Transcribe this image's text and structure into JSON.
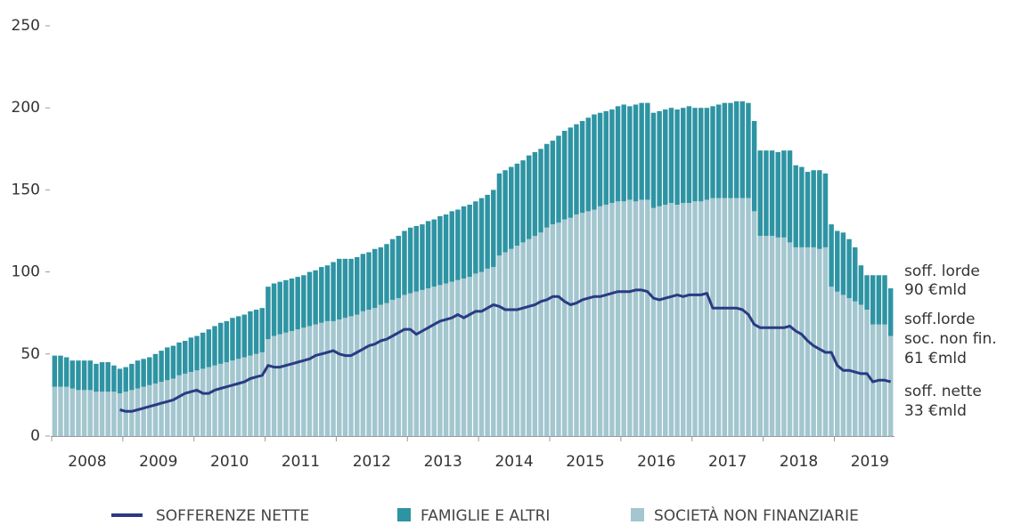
{
  "chart_data": {
    "type": "bar",
    "categories": [
      null,
      null,
      null,
      null,
      null,
      null,
      "2008",
      null,
      null,
      null,
      null,
      null,
      null,
      null,
      null,
      null,
      null,
      null,
      "2009",
      null,
      null,
      null,
      null,
      null,
      null,
      null,
      null,
      null,
      null,
      null,
      "2010",
      null,
      null,
      null,
      null,
      null,
      null,
      null,
      null,
      null,
      null,
      null,
      "2011",
      null,
      null,
      null,
      null,
      null,
      null,
      null,
      null,
      null,
      null,
      null,
      "2012",
      null,
      null,
      null,
      null,
      null,
      null,
      null,
      null,
      null,
      null,
      null,
      "2013",
      null,
      null,
      null,
      null,
      null,
      null,
      null,
      null,
      null,
      null,
      null,
      "2014",
      null,
      null,
      null,
      null,
      null,
      null,
      null,
      null,
      null,
      null,
      null,
      "2015",
      null,
      null,
      null,
      null,
      null,
      null,
      null,
      null,
      null,
      null,
      null,
      "2016",
      null,
      null,
      null,
      null,
      null,
      null,
      null,
      null,
      null,
      null,
      null,
      "2017",
      null,
      null,
      null,
      null,
      null,
      null,
      null,
      null,
      null,
      null,
      null,
      "2018",
      null,
      null,
      null,
      null,
      null,
      null,
      null,
      null,
      null,
      null,
      null,
      "2019",
      null,
      null,
      null
    ],
    "series": [
      {
        "name": "SOFFERENZE NETTE",
        "type": "line",
        "color": "#2b3a83",
        "values": [
          null,
          null,
          null,
          null,
          null,
          null,
          null,
          null,
          null,
          null,
          null,
          16,
          15,
          15,
          16,
          17,
          18,
          19,
          20,
          21,
          22,
          24,
          26,
          27,
          28,
          26,
          26,
          28,
          29,
          30,
          31,
          32,
          33,
          35,
          36,
          37,
          43,
          42,
          42,
          43,
          44,
          45,
          46,
          47,
          49,
          50,
          51,
          52,
          50,
          49,
          49,
          51,
          53,
          55,
          56,
          58,
          59,
          61,
          63,
          65,
          65,
          62,
          64,
          66,
          68,
          70,
          71,
          72,
          74,
          72,
          74,
          76,
          76,
          78,
          80,
          79,
          77,
          77,
          77,
          78,
          79,
          80,
          82,
          83,
          85,
          85,
          82,
          80,
          81,
          83,
          84,
          85,
          85,
          86,
          87,
          88,
          88,
          88,
          89,
          89,
          88,
          84,
          83,
          84,
          85,
          86,
          85,
          86,
          86,
          86,
          87,
          78,
          78,
          78,
          78,
          78,
          77,
          74,
          68,
          66,
          66,
          66,
          66,
          66,
          67,
          64,
          62,
          58,
          55,
          53,
          51,
          51,
          43,
          40,
          40,
          39,
          38,
          38,
          33,
          34,
          34,
          33
        ]
      },
      {
        "name": "FAMIGLIE E ALTRI",
        "type": "bar",
        "color": "#2e94a3",
        "values": [
          19,
          19,
          18,
          17,
          18,
          18,
          18,
          17,
          18,
          18,
          16,
          15,
          15,
          16,
          17,
          17,
          17,
          18,
          19,
          20,
          20,
          20,
          20,
          21,
          21,
          22,
          23,
          24,
          25,
          25,
          26,
          26,
          26,
          27,
          27,
          27,
          32,
          32,
          32,
          32,
          32,
          32,
          32,
          33,
          33,
          34,
          34,
          36,
          37,
          36,
          35,
          35,
          35,
          35,
          36,
          35,
          36,
          37,
          38,
          39,
          40,
          40,
          40,
          41,
          41,
          42,
          42,
          43,
          43,
          44,
          44,
          44,
          45,
          45,
          47,
          50,
          50,
          50,
          50,
          50,
          51,
          51,
          51,
          51,
          51,
          53,
          54,
          55,
          55,
          56,
          57,
          58,
          57,
          57,
          57,
          58,
          59,
          57,
          59,
          59,
          59,
          58,
          58,
          58,
          58,
          58,
          58,
          59,
          57,
          57,
          56,
          56,
          57,
          58,
          58,
          59,
          59,
          58,
          55,
          52,
          52,
          52,
          52,
          53,
          56,
          50,
          49,
          46,
          47,
          48,
          45,
          38,
          37,
          38,
          36,
          33,
          24,
          21,
          30,
          30,
          30,
          29
        ]
      },
      {
        "name": "SOCIETÀ NON FINANZIARIE",
        "type": "bar",
        "color": "#a3c6cf",
        "values": [
          30,
          30,
          30,
          29,
          28,
          28,
          28,
          27,
          27,
          27,
          27,
          26,
          27,
          28,
          29,
          30,
          31,
          32,
          33,
          34,
          35,
          37,
          38,
          39,
          40,
          41,
          42,
          43,
          44,
          45,
          46,
          47,
          48,
          49,
          50,
          51,
          59,
          61,
          62,
          63,
          64,
          65,
          66,
          67,
          68,
          69,
          70,
          70,
          71,
          72,
          73,
          74,
          76,
          77,
          78,
          80,
          81,
          83,
          84,
          86,
          87,
          88,
          89,
          90,
          91,
          92,
          93,
          94,
          95,
          96,
          97,
          99,
          100,
          102,
          103,
          110,
          112,
          114,
          116,
          118,
          120,
          122,
          124,
          127,
          129,
          130,
          132,
          133,
          135,
          136,
          137,
          138,
          140,
          141,
          142,
          143,
          143,
          144,
          143,
          144,
          144,
          139,
          140,
          141,
          142,
          141,
          142,
          142,
          143,
          143,
          144,
          145,
          145,
          145,
          145,
          145,
          145,
          145,
          137,
          122,
          122,
          122,
          121,
          121,
          118,
          115,
          115,
          115,
          115,
          114,
          115,
          91,
          88,
          86,
          84,
          82,
          80,
          77,
          68,
          68,
          68,
          61
        ]
      }
    ],
    "ylim": [
      0,
      250
    ],
    "yticks": [
      0,
      50,
      100,
      150,
      200,
      250
    ],
    "annotations": [
      "soff. lorde",
      "90 €mld",
      "soff.lorde",
      "soc. non fin.",
      "61 €mld",
      "soff. nette",
      "33 €mld"
    ],
    "legend": "bottom"
  }
}
